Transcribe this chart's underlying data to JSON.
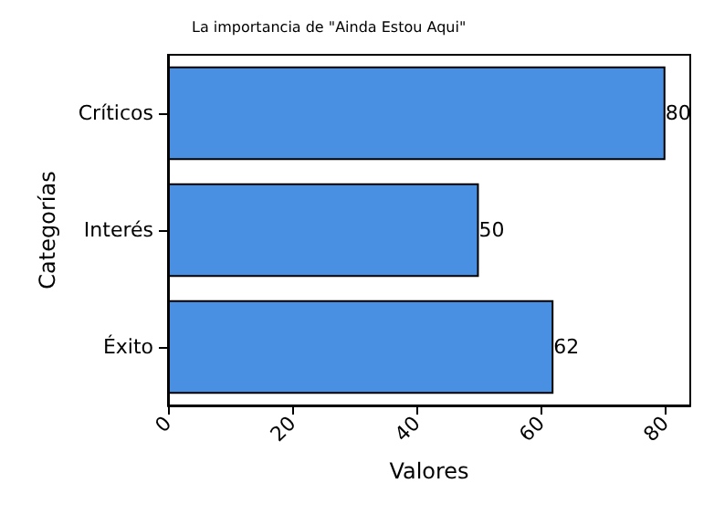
{
  "chart_data": {
    "type": "bar",
    "orientation": "horizontal",
    "title": "La importancia de \"Ainda Estou Aqui\"",
    "xlabel": "Valores",
    "ylabel": "Categorías",
    "categories": [
      "Críticos",
      "Interés",
      "Éxito"
    ],
    "values": [
      80,
      50,
      62
    ],
    "color": "#4a90e2",
    "data_labels": true,
    "xlim": [
      0,
      84
    ],
    "xticks": [
      0,
      20,
      40,
      60,
      80
    ],
    "grid": false
  }
}
